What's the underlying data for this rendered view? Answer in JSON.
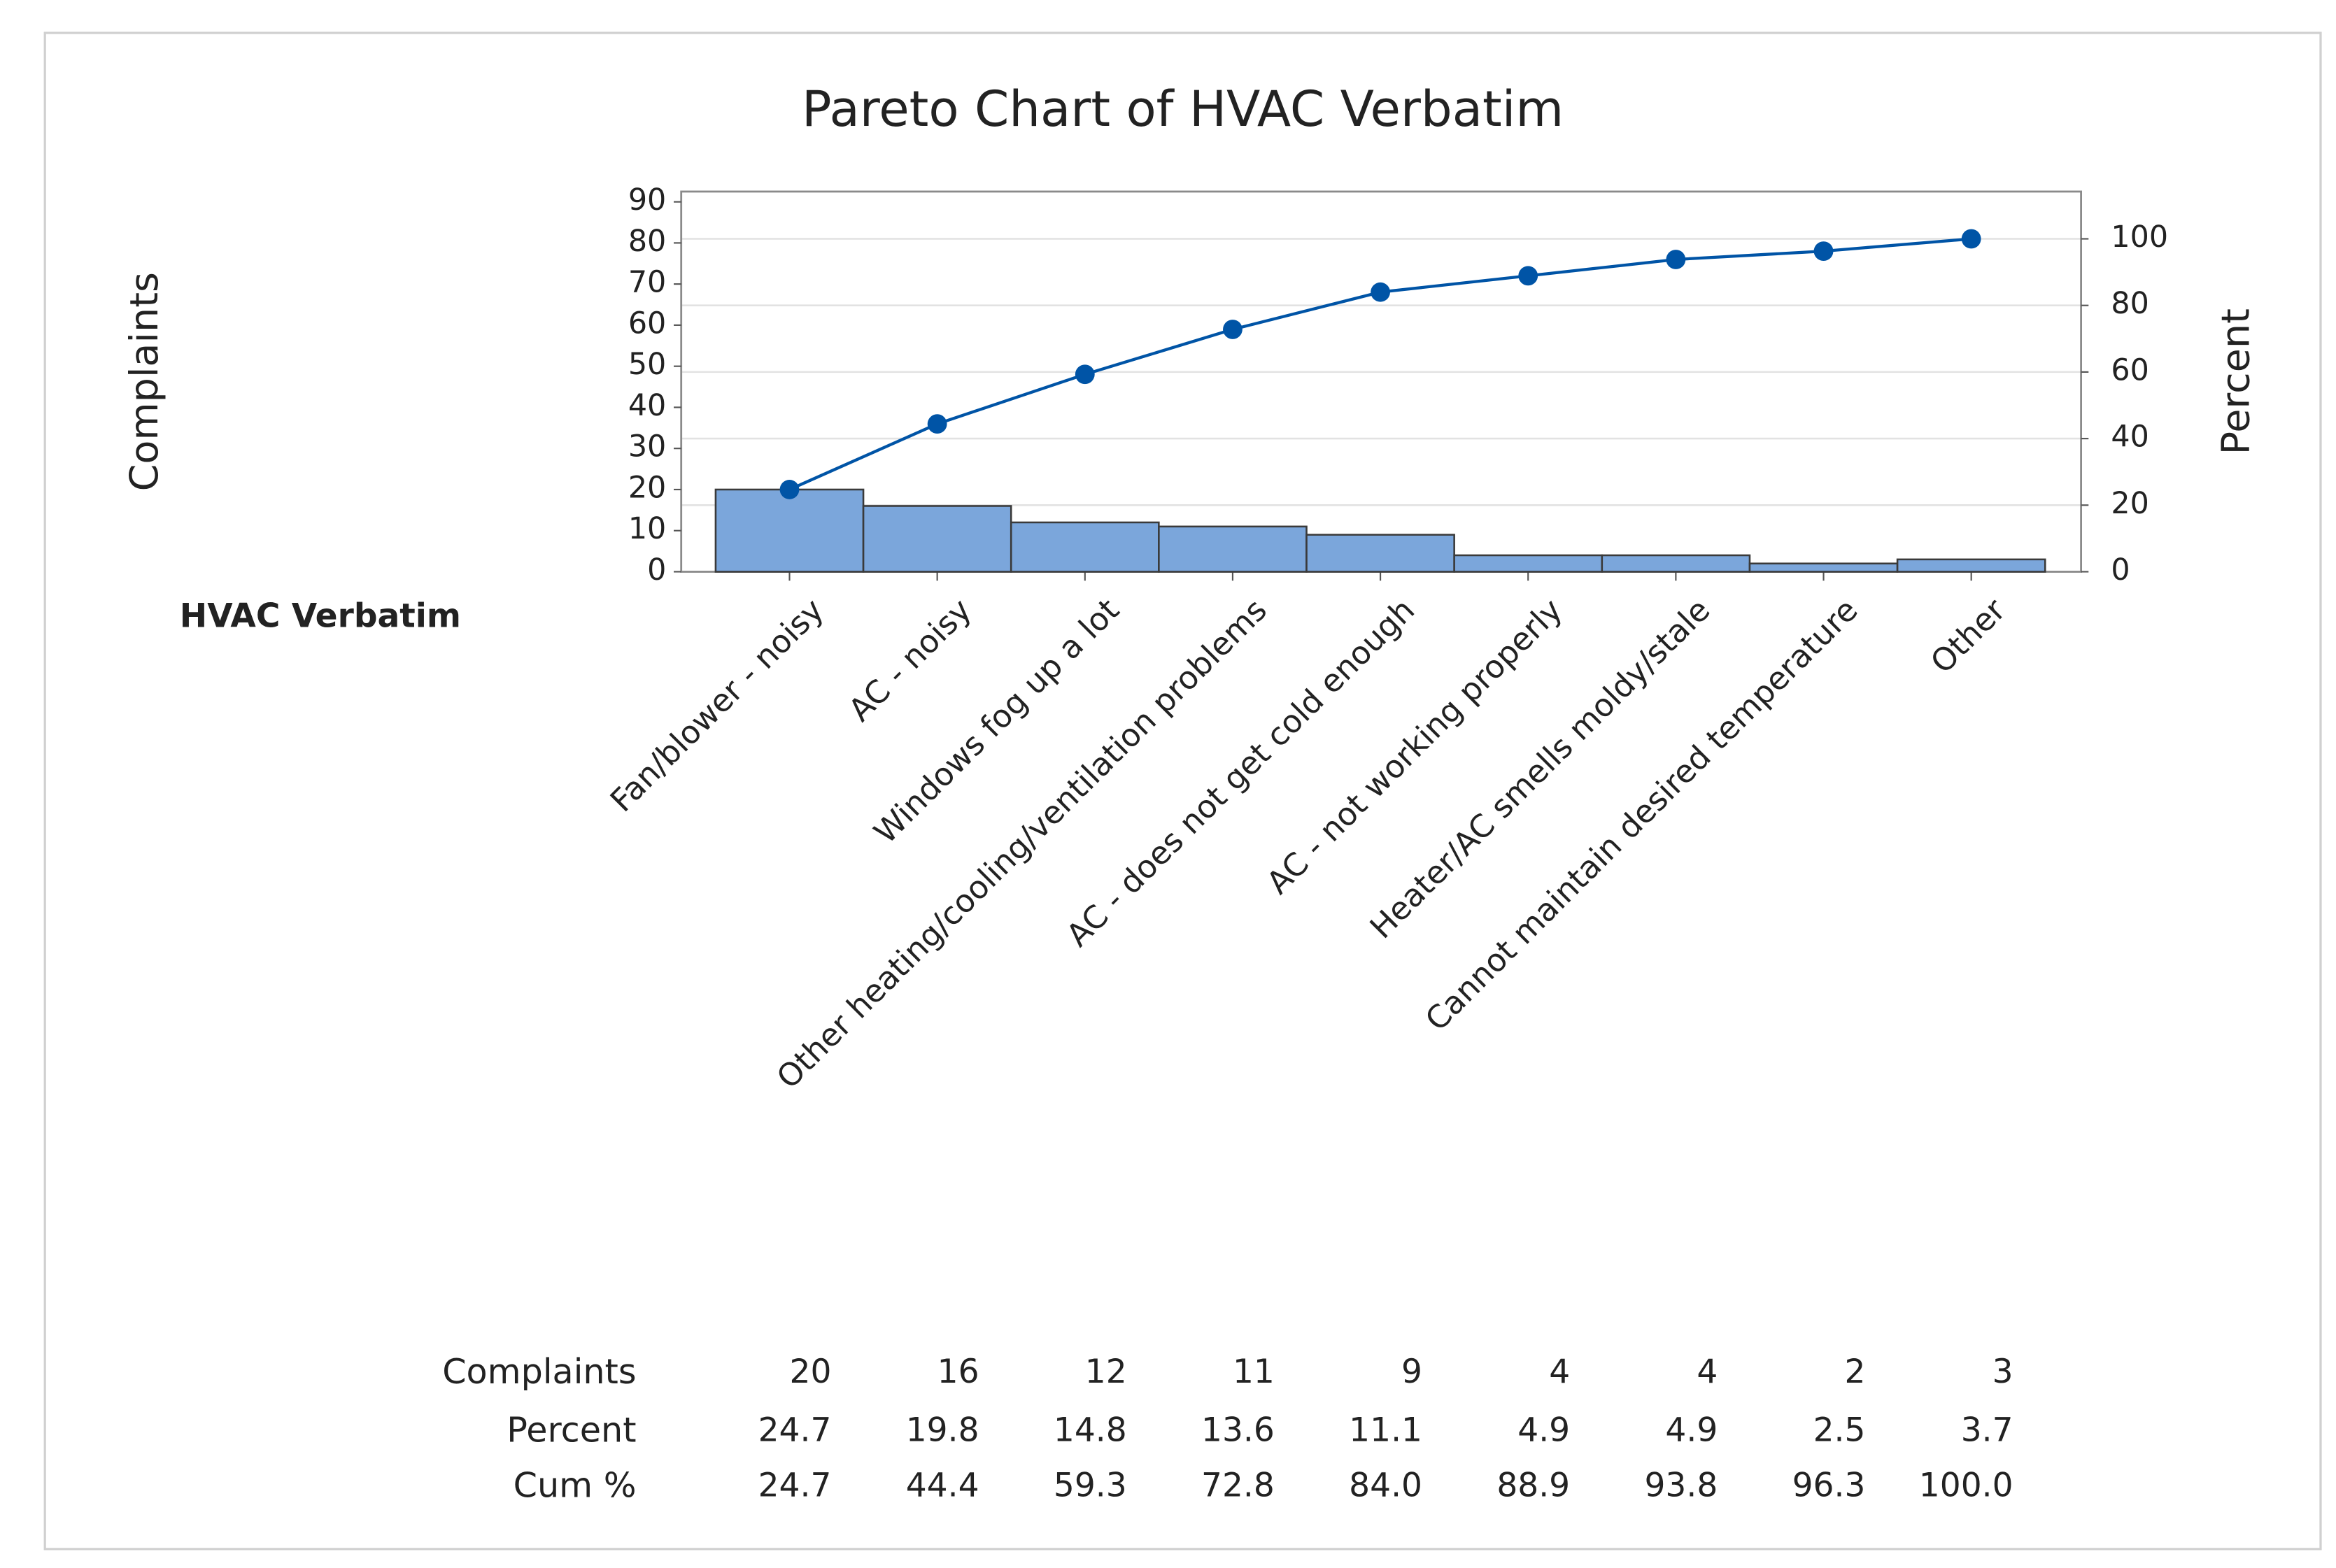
{
  "chart_data": {
    "type": "pareto",
    "title": "Pareto Chart of HVAC Verbatim",
    "x_label": "HVAC Verbatim",
    "y_label": "Complaints",
    "y2_label": "Percent",
    "categories": [
      "Fan/blower - noisy",
      "AC - noisy",
      "Windows fog up a lot",
      "Other heating/cooling/ventilation problems",
      "AC - does not get cold enough",
      "AC - not working properly",
      "Heater/AC smells moldy/stale",
      "Cannot maintain desired temperature",
      "Other"
    ],
    "series": [
      {
        "name": "Complaints",
        "type": "bar",
        "color": "#7ba6db",
        "values": [
          20,
          16,
          12,
          11,
          9,
          4,
          4,
          2,
          3
        ]
      },
      {
        "name": "Percent",
        "values": [
          24.7,
          19.8,
          14.8,
          13.6,
          11.1,
          4.9,
          4.9,
          2.5,
          3.7
        ]
      },
      {
        "name": "Cum %",
        "type": "line",
        "axis": "y2",
        "color": "#0054a6",
        "values": [
          24.7,
          44.4,
          59.3,
          72.8,
          84.0,
          88.9,
          93.8,
          96.3,
          100.0
        ],
        "value_labels": [
          "24.7",
          "44.4",
          "59.3",
          "72.8",
          "84.0",
          "88.9",
          "93.8",
          "96.3",
          "100.0"
        ]
      }
    ],
    "ylim": [
      0,
      92.5
    ],
    "yticks": [
      0,
      10,
      20,
      30,
      40,
      50,
      60,
      70,
      80,
      90
    ],
    "y2lim": [
      0,
      114.2
    ],
    "y2ticks": [
      0,
      20,
      40,
      60,
      80,
      100
    ],
    "grid": "y2"
  }
}
